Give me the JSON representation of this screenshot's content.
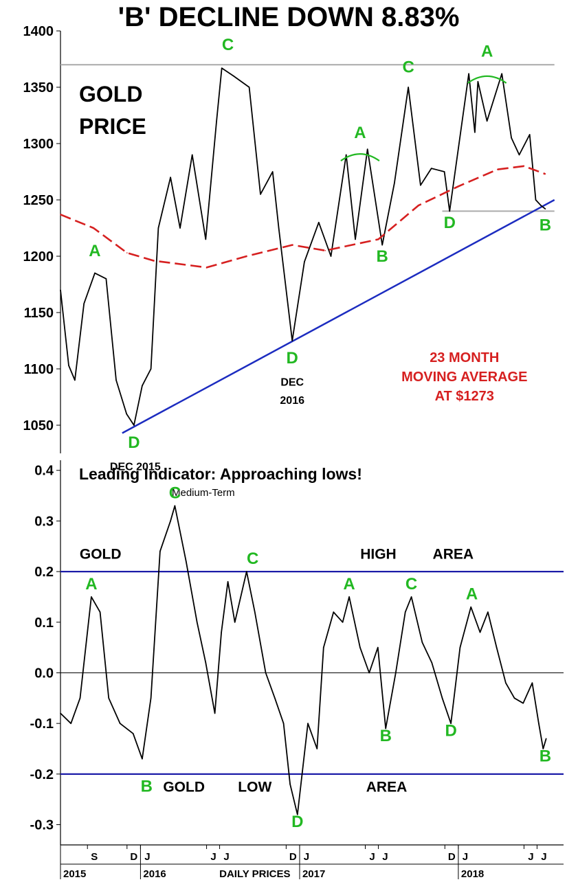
{
  "chart_data": [
    {
      "type": "line",
      "title": "'B' DECLINE DOWN 8.83%",
      "panel_label": "GOLD PRICE",
      "ylim": [
        1025,
        1400
      ],
      "yticks": [
        1050,
        1100,
        1150,
        1200,
        1250,
        1300,
        1350,
        1400
      ],
      "grid": false,
      "series": [
        {
          "color": "#000000",
          "points": [
            [
              "2015-07-01",
              1170
            ],
            [
              "2015-07-20",
              1103
            ],
            [
              "2015-08-03",
              1090
            ],
            [
              "2015-08-24",
              1158
            ],
            [
              "2015-09-18",
              1185
            ],
            [
              "2015-10-14",
              1180
            ],
            [
              "2015-11-06",
              1090
            ],
            [
              "2015-11-30",
              1060
            ],
            [
              "2015-12-17",
              1050
            ],
            [
              "2016-01-05",
              1085
            ],
            [
              "2016-01-25",
              1100
            ],
            [
              "2016-02-11",
              1225
            ],
            [
              "2016-03-10",
              1270
            ],
            [
              "2016-04-01",
              1225
            ],
            [
              "2016-04-29",
              1290
            ],
            [
              "2016-05-30",
              1215
            ],
            [
              "2016-06-24",
              1320
            ],
            [
              "2016-07-06",
              1367
            ],
            [
              "2016-08-02",
              1360
            ],
            [
              "2016-09-07",
              1350
            ],
            [
              "2016-10-03",
              1255
            ],
            [
              "2016-10-31",
              1275
            ],
            [
              "2016-11-14",
              1225
            ],
            [
              "2016-12-15",
              1125
            ],
            [
              "2017-01-12",
              1195
            ],
            [
              "2017-02-14",
              1230
            ],
            [
              "2017-03-14",
              1200
            ],
            [
              "2017-04-18",
              1290
            ],
            [
              "2017-05-09",
              1215
            ],
            [
              "2017-06-06",
              1295
            ],
            [
              "2017-07-10",
              1210
            ],
            [
              "2017-08-07",
              1265
            ],
            [
              "2017-09-08",
              1350
            ],
            [
              "2017-10-06",
              1263
            ],
            [
              "2017-10-31",
              1278
            ],
            [
              "2017-11-30",
              1275
            ],
            [
              "2017-12-12",
              1240
            ],
            [
              "2018-01-25",
              1362
            ],
            [
              "2018-02-08",
              1310
            ],
            [
              "2018-02-15",
              1355
            ],
            [
              "2018-03-08",
              1320
            ],
            [
              "2018-04-11",
              1362
            ],
            [
              "2018-05-03",
              1305
            ],
            [
              "2018-05-21",
              1290
            ],
            [
              "2018-06-14",
              1308
            ],
            [
              "2018-06-28",
              1250
            ],
            [
              "2018-07-10",
              1245
            ],
            [
              "2018-07-20",
              1242
            ]
          ]
        },
        {
          "name": "23 MONTH MOVING AVERAGE AT $1273",
          "color": "#d62020",
          "style": "dashed",
          "points": [
            [
              "2015-07-01",
              1237
            ],
            [
              "2015-09-15",
              1225
            ],
            [
              "2015-12-01",
              1203
            ],
            [
              "2016-02-01",
              1196
            ],
            [
              "2016-06-01",
              1190
            ],
            [
              "2016-09-01",
              1200
            ],
            [
              "2016-12-15",
              1210
            ],
            [
              "2017-03-01",
              1205
            ],
            [
              "2017-07-01",
              1215
            ],
            [
              "2017-10-01",
              1245
            ],
            [
              "2018-01-01",
              1262
            ],
            [
              "2018-04-01",
              1277
            ],
            [
              "2018-06-01",
              1280
            ],
            [
              "2018-07-20",
              1273
            ]
          ]
        }
      ],
      "trendline": [
        [
          "2015-11-20",
          1043
        ],
        [
          "2018-08-10",
          1250
        ]
      ],
      "reference_lines": [
        {
          "y": 1370,
          "color": "#aaaaaa",
          "x_from": "2015-07-01",
          "x_to": "2018-08-10"
        },
        {
          "y": 1240,
          "color": "#aaaaaa",
          "x_from": "2017-11-25",
          "x_to": "2018-08-10"
        }
      ],
      "annotations": [
        {
          "text": "A",
          "x": "2015-09-18",
          "y": 1200
        },
        {
          "text": "D",
          "x": "2015-12-17",
          "y": 1030
        },
        {
          "text": "DEC 2015",
          "x": "2015-12-20",
          "y": 1010
        },
        {
          "text": "C",
          "x": "2016-07-20",
          "y": 1383
        },
        {
          "text": "D",
          "x": "2016-12-15",
          "y": 1105
        },
        {
          "text": "DEC",
          "x": "2016-12-15",
          "y": 1085
        },
        {
          "text": "2016",
          "x": "2016-12-15",
          "y": 1069
        },
        {
          "text": "A",
          "x": "2017-05-20",
          "y": 1305
        },
        {
          "text": "B",
          "x": "2017-07-10",
          "y": 1195
        },
        {
          "text": "C",
          "x": "2017-09-08",
          "y": 1363
        },
        {
          "text": "D",
          "x": "2017-12-12",
          "y": 1225
        },
        {
          "text": "A",
          "x": "2018-03-08",
          "y": 1377
        },
        {
          "text": "B",
          "x": "2018-07-20",
          "y": 1223
        },
        {
          "text": "23 MONTH",
          "x": "2018-01-15",
          "y": 1106
        },
        {
          "text": "MOVING AVERAGE",
          "x": "2018-01-15",
          "y": 1089
        },
        {
          "text": "AT $1273",
          "x": "2018-01-15",
          "y": 1072
        }
      ]
    },
    {
      "type": "line",
      "title": "Leading Indicator:  Approaching lows!",
      "subtitle": "Medium-Term",
      "ylim": [
        -0.34,
        0.42
      ],
      "yticks": [
        -0.3,
        -0.2,
        -0.1,
        0.0,
        0.1,
        0.2,
        0.3,
        0.4
      ],
      "grid": false,
      "series": [
        {
          "color": "#000000",
          "points": [
            [
              "2015-07-01",
              -0.08
            ],
            [
              "2015-07-25",
              -0.1
            ],
            [
              "2015-08-15",
              -0.05
            ],
            [
              "2015-09-10",
              0.15
            ],
            [
              "2015-09-30",
              0.12
            ],
            [
              "2015-10-20",
              -0.05
            ],
            [
              "2015-11-15",
              -0.1
            ],
            [
              "2015-12-15",
              -0.12
            ],
            [
              "2016-01-05",
              -0.17
            ],
            [
              "2016-01-25",
              -0.05
            ],
            [
              "2016-02-15",
              0.24
            ],
            [
              "2016-03-10",
              0.3
            ],
            [
              "2016-03-20",
              0.33
            ],
            [
              "2016-04-15",
              0.22
            ],
            [
              "2016-05-10",
              0.1
            ],
            [
              "2016-05-30",
              0.02
            ],
            [
              "2016-06-20",
              -0.08
            ],
            [
              "2016-07-05",
              0.08
            ],
            [
              "2016-07-20",
              0.18
            ],
            [
              "2016-08-05",
              0.1
            ],
            [
              "2016-09-01",
              0.2
            ],
            [
              "2016-09-20",
              0.12
            ],
            [
              "2016-10-15",
              0.0
            ],
            [
              "2016-11-05",
              -0.05
            ],
            [
              "2016-11-25",
              -0.1
            ],
            [
              "2016-12-10",
              -0.22
            ],
            [
              "2016-12-27",
              -0.28
            ],
            [
              "2017-01-20",
              -0.1
            ],
            [
              "2017-02-10",
              -0.15
            ],
            [
              "2017-02-25",
              0.05
            ],
            [
              "2017-03-20",
              0.12
            ],
            [
              "2017-04-10",
              0.1
            ],
            [
              "2017-04-25",
              0.15
            ],
            [
              "2017-05-20",
              0.05
            ],
            [
              "2017-06-10",
              0.0
            ],
            [
              "2017-06-30",
              0.05
            ],
            [
              "2017-07-18",
              -0.11
            ],
            [
              "2017-08-10",
              0.0
            ],
            [
              "2017-09-01",
              0.12
            ],
            [
              "2017-09-15",
              0.15
            ],
            [
              "2017-10-10",
              0.06
            ],
            [
              "2017-11-01",
              0.02
            ],
            [
              "2017-11-25",
              -0.05
            ],
            [
              "2017-12-15",
              -0.1
            ],
            [
              "2018-01-05",
              0.05
            ],
            [
              "2018-01-30",
              0.13
            ],
            [
              "2018-02-20",
              0.08
            ],
            [
              "2018-03-10",
              0.12
            ],
            [
              "2018-03-30",
              0.05
            ],
            [
              "2018-04-20",
              -0.02
            ],
            [
              "2018-05-10",
              -0.05
            ],
            [
              "2018-05-30",
              -0.06
            ],
            [
              "2018-06-20",
              -0.02
            ],
            [
              "2018-07-05",
              -0.1
            ],
            [
              "2018-07-15",
              -0.15
            ],
            [
              "2018-07-22",
              -0.13
            ]
          ]
        }
      ],
      "reference_lines": [
        {
          "y": 0.0,
          "color": "#000000"
        },
        {
          "y": 0.2,
          "color": "#1c1ca8"
        },
        {
          "y": -0.2,
          "color": "#1c1ca8"
        }
      ],
      "zone_labels": [
        {
          "text": "GOLD",
          "x": "2015-10-01",
          "y": 0.225
        },
        {
          "text": "HIGH",
          "x": "2017-07-01",
          "y": 0.225
        },
        {
          "text": "AREA",
          "x": "2017-12-20",
          "y": 0.225
        },
        {
          "text": "GOLD",
          "x": "2016-04-10",
          "y": -0.235
        },
        {
          "text": "LOW",
          "x": "2016-09-20",
          "y": -0.235
        },
        {
          "text": "AREA",
          "x": "2017-07-20",
          "y": -0.235
        }
      ],
      "annotations": [
        {
          "text": "A",
          "x": "2015-09-10",
          "y": 0.165
        },
        {
          "text": "B",
          "x": "2016-01-15",
          "y": -0.235
        },
        {
          "text": "C",
          "x": "2016-03-20",
          "y": 0.345
        },
        {
          "text": "C",
          "x": "2016-09-15",
          "y": 0.215
        },
        {
          "text": "D",
          "x": "2016-12-27",
          "y": -0.305
        },
        {
          "text": "A",
          "x": "2017-04-25",
          "y": 0.165
        },
        {
          "text": "B",
          "x": "2017-07-18",
          "y": -0.135
        },
        {
          "text": "C",
          "x": "2017-09-15",
          "y": 0.165
        },
        {
          "text": "D",
          "x": "2017-12-15",
          "y": -0.125
        },
        {
          "text": "A",
          "x": "2018-02-01",
          "y": 0.145
        },
        {
          "text": "B",
          "x": "2018-07-20",
          "y": -0.175
        }
      ],
      "x_axis": {
        "month_ticks": [
          {
            "label": "S",
            "date": "2015-09-01"
          },
          {
            "label": "D",
            "date": "2015-12-01"
          },
          {
            "label": "J",
            "date": "2016-01-01"
          },
          {
            "label": "J",
            "date": "2016-06-01"
          },
          {
            "label": "J",
            "date": "2016-07-01"
          },
          {
            "label": "D",
            "date": "2016-12-01"
          },
          {
            "label": "J",
            "date": "2017-01-01"
          },
          {
            "label": "J",
            "date": "2017-06-01"
          },
          {
            "label": "J",
            "date": "2017-07-01"
          },
          {
            "label": "D",
            "date": "2017-12-01"
          },
          {
            "label": "J",
            "date": "2018-01-01"
          },
          {
            "label": "J",
            "date": "2018-06-01"
          },
          {
            "label": "J",
            "date": "2018-07-01"
          }
        ],
        "year_labels": [
          {
            "label": "2015",
            "date": "2015-07-01"
          },
          {
            "label": "2016",
            "date": "2016-01-01"
          },
          {
            "label": "2017",
            "date": "2017-01-01"
          },
          {
            "label": "2018",
            "date": "2018-01-01"
          }
        ],
        "center_label": "DAILY PRICES",
        "center_label_date": "2016-09-20"
      }
    }
  ]
}
